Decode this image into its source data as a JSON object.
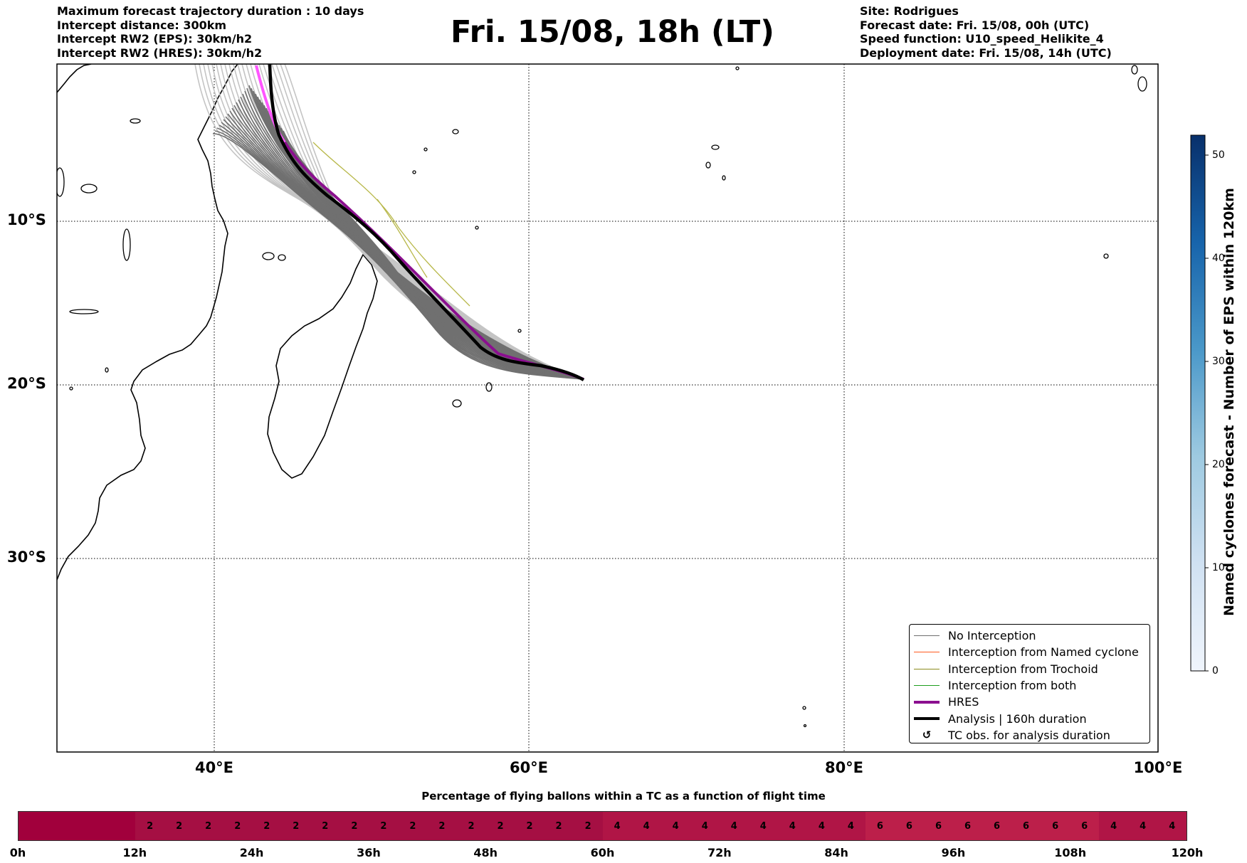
{
  "header": {
    "left_lines": [
      "Maximum forecast trajectory duration : 10 days",
      "Intercept distance: 300km",
      "Intercept RW2 (EPS):  30km/h2",
      "Intercept RW2 (HRES): 30km/h2"
    ],
    "title": "Fri. 15/08, 18h (LT)",
    "right_lines": [
      "Site: Rodrigues",
      "Forecast date: Fri. 15/08, 00h (UTC)",
      "Speed function: U10_speed_Helikite_4",
      "Deployment date: Fri. 15/08, 14h (UTC)"
    ]
  },
  "map": {
    "lat_labels": [
      "10°S",
      "20°S",
      "30°S"
    ],
    "lon_labels": [
      "40°E",
      "60°E",
      "80°E",
      "100°E"
    ],
    "line_colors": {
      "no_interception": "#6e6e6e",
      "named_cyclone": "#ff5a1f",
      "trochoid": "#8c8c1e",
      "both": "#1e9e1e",
      "hres": "#8b0f8f",
      "analysis": "#000000"
    }
  },
  "legend": {
    "items": [
      {
        "label": "No Interception",
        "color": "#6e6e6e",
        "kind": "thin"
      },
      {
        "label": "Interception from Named cyclone",
        "color": "#ff5a1f",
        "kind": "thin"
      },
      {
        "label": "Interception from Trochoid",
        "color": "#8c8c1e",
        "kind": "thin"
      },
      {
        "label": "Interception from both",
        "color": "#1e9e1e",
        "kind": "thin"
      },
      {
        "label": "HRES",
        "color": "#8b0f8f",
        "kind": "thick"
      },
      {
        "label": "Analysis | 160h duration",
        "color": "#000000",
        "kind": "thick"
      },
      {
        "label": "TC obs. for analysis duration",
        "color": "#000000",
        "kind": "symbol",
        "symbol": "↺"
      }
    ]
  },
  "colorbar": {
    "label": "Named cyclones forecast - Number of EPS within 120km",
    "ticks": [
      "0",
      "10",
      "20",
      "30",
      "40",
      "50"
    ],
    "colors": [
      "#f0f5fc",
      "#d0e1f2",
      "#9ecae1",
      "#4a98c9",
      "#1764ab",
      "#08306b"
    ]
  },
  "bottom": {
    "title": "Percentage of flying ballons within a TC as a function of flight time",
    "cells": [
      {
        "value": "",
        "color": "#a1003c"
      },
      {
        "value": "",
        "color": "#a1003c"
      },
      {
        "value": "",
        "color": "#a1003c"
      },
      {
        "value": "",
        "color": "#a1003c"
      },
      {
        "value": "2",
        "color": "#a50f43"
      },
      {
        "value": "2",
        "color": "#a50f43"
      },
      {
        "value": "2",
        "color": "#a50f43"
      },
      {
        "value": "2",
        "color": "#a50f43"
      },
      {
        "value": "2",
        "color": "#a50f43"
      },
      {
        "value": "2",
        "color": "#a50f43"
      },
      {
        "value": "2",
        "color": "#a50f43"
      },
      {
        "value": "2",
        "color": "#a50f43"
      },
      {
        "value": "2",
        "color": "#a50f43"
      },
      {
        "value": "2",
        "color": "#a50f43"
      },
      {
        "value": "2",
        "color": "#a50f43"
      },
      {
        "value": "2",
        "color": "#a50f43"
      },
      {
        "value": "2",
        "color": "#a50f43"
      },
      {
        "value": "2",
        "color": "#a50f43"
      },
      {
        "value": "2",
        "color": "#a50f43"
      },
      {
        "value": "2",
        "color": "#a50f43"
      },
      {
        "value": "4",
        "color": "#b01546"
      },
      {
        "value": "4",
        "color": "#b01546"
      },
      {
        "value": "4",
        "color": "#b01546"
      },
      {
        "value": "4",
        "color": "#b01546"
      },
      {
        "value": "4",
        "color": "#b01546"
      },
      {
        "value": "4",
        "color": "#b01546"
      },
      {
        "value": "4",
        "color": "#b01546"
      },
      {
        "value": "4",
        "color": "#b01546"
      },
      {
        "value": "4",
        "color": "#b01546"
      },
      {
        "value": "6",
        "color": "#bc1f4a"
      },
      {
        "value": "6",
        "color": "#bc1f4a"
      },
      {
        "value": "6",
        "color": "#bc1f4a"
      },
      {
        "value": "6",
        "color": "#bc1f4a"
      },
      {
        "value": "6",
        "color": "#bc1f4a"
      },
      {
        "value": "6",
        "color": "#bc1f4a"
      },
      {
        "value": "6",
        "color": "#bc1f4a"
      },
      {
        "value": "6",
        "color": "#bc1f4a"
      },
      {
        "value": "4",
        "color": "#b01546"
      },
      {
        "value": "4",
        "color": "#b01546"
      },
      {
        "value": "4",
        "color": "#b01546"
      }
    ],
    "hour_labels": [
      "0h",
      "12h",
      "24h",
      "36h",
      "48h",
      "60h",
      "72h",
      "84h",
      "96h",
      "108h",
      "120h"
    ]
  }
}
